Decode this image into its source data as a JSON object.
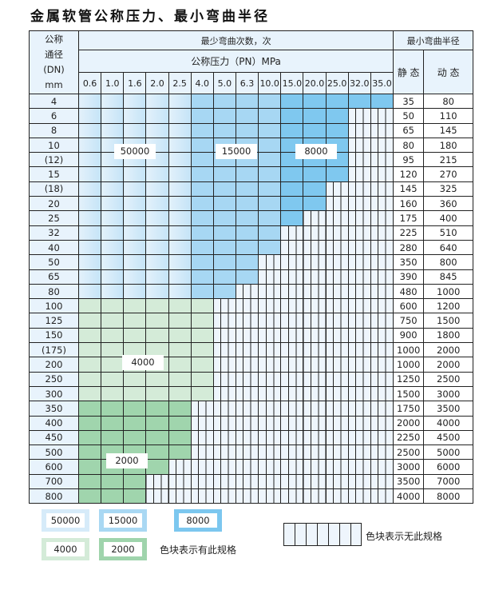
{
  "title": "金属软管公称压力、最小弯曲半径",
  "header": {
    "dn_label": [
      "公称",
      "通径",
      "(DN)",
      "mm"
    ],
    "cycles_label": "最少弯曲次数，次",
    "pressure_label": "公称压力（PN）MPa",
    "radius_label": "最小弯曲半径",
    "static_label": "静 态",
    "dynamic_label": "动 态",
    "pressures": [
      "0.6",
      "1.0",
      "1.6",
      "2.0",
      "2.5",
      "4.0",
      "5.0",
      "6.3",
      "10.0",
      "15.0",
      "20.0",
      "25.0",
      "32.0",
      "35.0"
    ]
  },
  "categories": {
    "A": {
      "value": "50000",
      "color": "#c5e4f7"
    },
    "B": {
      "value": "15000",
      "color": "#a7d7f3"
    },
    "C": {
      "value": "8000",
      "color": "#7fc8ef"
    },
    "D": {
      "value": "4000",
      "color": "#d4ebd8"
    },
    "E": {
      "value": "2000",
      "color": "#a0d5ad"
    },
    "X": {
      "value": "",
      "color": "#eef5fc"
    }
  },
  "rows": [
    {
      "dn": "4",
      "static": "35",
      "dynamic": "80",
      "cells": "AAAAABBBBCCCCC"
    },
    {
      "dn": "6",
      "static": "50",
      "dynamic": "110",
      "cells": "AAAAABBBBCCCXX"
    },
    {
      "dn": "8",
      "static": "65",
      "dynamic": "145",
      "cells": "AAAAABBBBCCCXX"
    },
    {
      "dn": "10",
      "static": "80",
      "dynamic": "180",
      "cells": "AAAAABBBBCCCXX"
    },
    {
      "dn": "(12)",
      "static": "95",
      "dynamic": "215",
      "cells": "AAAAABBBBCCCXX"
    },
    {
      "dn": "15",
      "static": "120",
      "dynamic": "270",
      "cells": "AAAAABBBBCCCXX"
    },
    {
      "dn": "(18)",
      "static": "145",
      "dynamic": "325",
      "cells": "AAAAABBBBCCXXX"
    },
    {
      "dn": "20",
      "static": "160",
      "dynamic": "360",
      "cells": "AAAAABBBBCCXXX"
    },
    {
      "dn": "25",
      "static": "175",
      "dynamic": "400",
      "cells": "AAAAABBBBCXXXX"
    },
    {
      "dn": "32",
      "static": "225",
      "dynamic": "510",
      "cells": "AAAAABBBBXXXXX"
    },
    {
      "dn": "40",
      "static": "280",
      "dynamic": "640",
      "cells": "AAAAABBBBXXXXX"
    },
    {
      "dn": "50",
      "static": "350",
      "dynamic": "800",
      "cells": "AAAAABBBXXXXXX"
    },
    {
      "dn": "65",
      "static": "390",
      "dynamic": "845",
      "cells": "AAAAABBBXXXXXX"
    },
    {
      "dn": "80",
      "static": "480",
      "dynamic": "1000",
      "cells": "AAAAABBXXXXXXX"
    },
    {
      "dn": "100",
      "static": "600",
      "dynamic": "1200",
      "cells": "DDDDDDXXXXXXXX"
    },
    {
      "dn": "125",
      "static": "750",
      "dynamic": "1500",
      "cells": "DDDDDDXXXXXXXX"
    },
    {
      "dn": "150",
      "static": "900",
      "dynamic": "1800",
      "cells": "DDDDDDXXXXXXXX"
    },
    {
      "dn": "(175)",
      "static": "1000",
      "dynamic": "2000",
      "cells": "DDDDDDXXXXXXXX"
    },
    {
      "dn": "200",
      "static": "1000",
      "dynamic": "2000",
      "cells": "DDDDDDXXXXXXXX"
    },
    {
      "dn": "250",
      "static": "1250",
      "dynamic": "2500",
      "cells": "DDDDDDXXXXXXXX"
    },
    {
      "dn": "300",
      "static": "1500",
      "dynamic": "3000",
      "cells": "DDDDDDXXXXXXXX"
    },
    {
      "dn": "350",
      "static": "1750",
      "dynamic": "3500",
      "cells": "EEEEEXXXXXXXXX"
    },
    {
      "dn": "400",
      "static": "2000",
      "dynamic": "4000",
      "cells": "EEEEEXXXXXXXXX"
    },
    {
      "dn": "450",
      "static": "2250",
      "dynamic": "4500",
      "cells": "EEEEEXXXXXXXXX"
    },
    {
      "dn": "500",
      "static": "2500",
      "dynamic": "5000",
      "cells": "EEEEEXXXXXXXXX"
    },
    {
      "dn": "600",
      "static": "3000",
      "dynamic": "6000",
      "cells": "EEEEXXXXXXXXXX"
    },
    {
      "dn": "700",
      "static": "3500",
      "dynamic": "7000",
      "cells": "EEEXXXXXXXXXXX"
    },
    {
      "dn": "800",
      "static": "4000",
      "dynamic": "8000",
      "cells": "EEEXXXXXXXXXXX"
    }
  ],
  "region_labels": {
    "a": "50000",
    "b": "15000",
    "c": "8000",
    "d": "4000",
    "e": "2000"
  },
  "legend": {
    "items": [
      "50000",
      "15000",
      "8000",
      "4000",
      "2000"
    ],
    "has_spec_text": "色块表示有此规格",
    "no_spec_text": "色块表示无此规格"
  }
}
